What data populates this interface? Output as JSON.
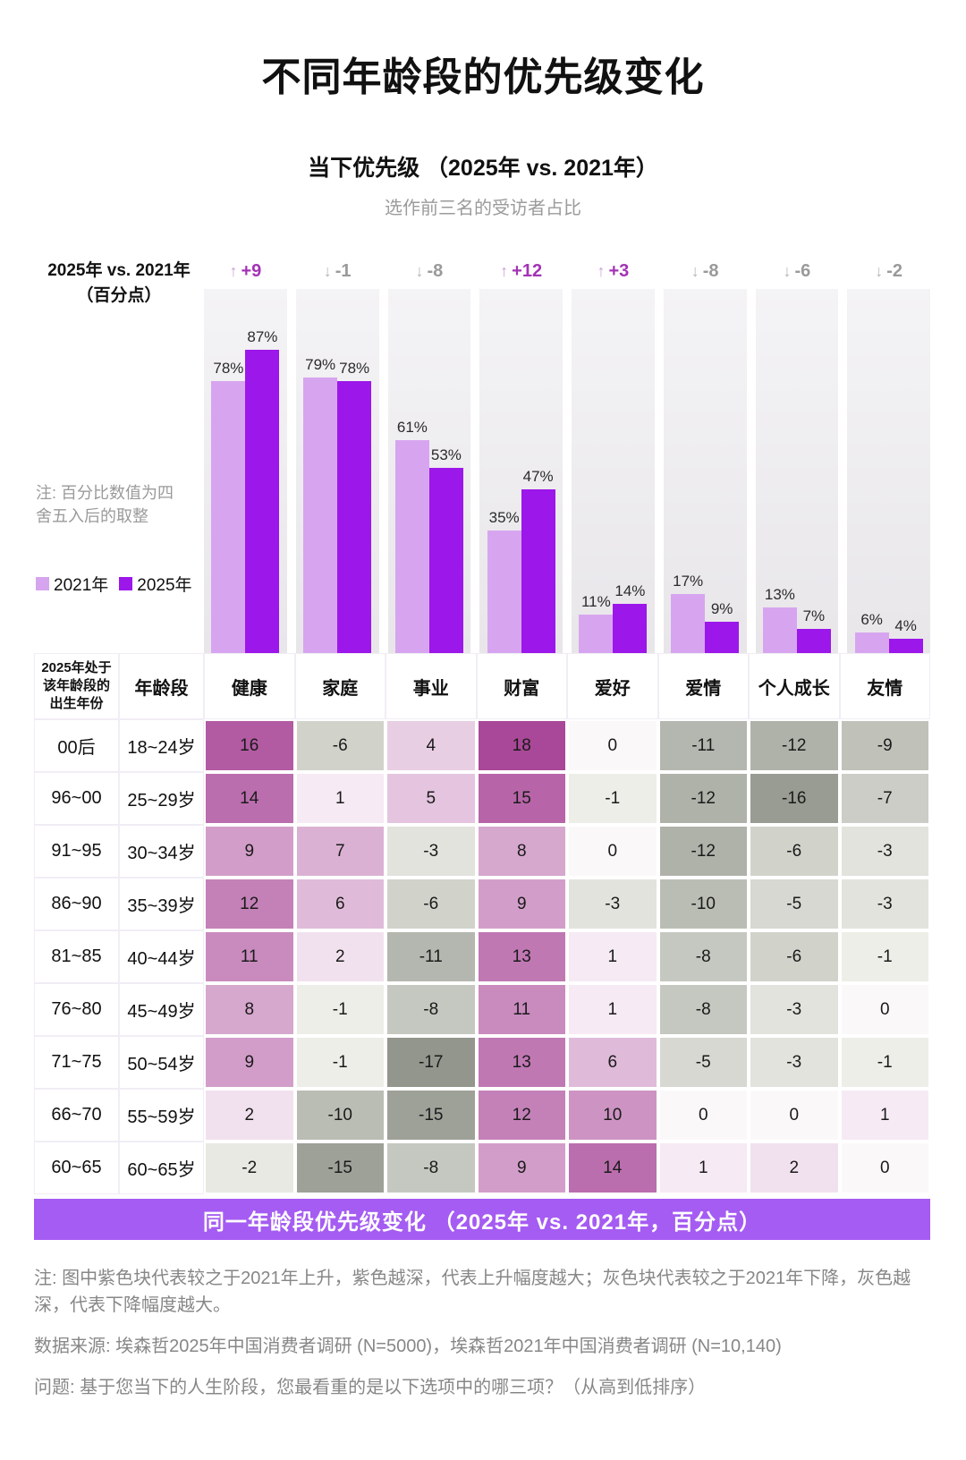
{
  "page": {
    "title": "不同年龄段的优先级变化",
    "subtitle": "当下优先级 （2025年 vs. 2021年）",
    "subtitle_note": "选作前三名的受访者占比",
    "axis_label_line1": "2025年 vs. 2021年",
    "axis_label_line2": "（百分点）",
    "rounding_note": "注: 百分比数值为四舍五入后的取整",
    "banner": "同一年龄段优先级变化 （2025年 vs. 2021年，百分点）",
    "footnote_colors": "注: 图中紫色块代表较之于2021年上升，紫色越深，代表上升幅度越大；灰色块代表较之于2021年下降，灰色越深，代表下降幅度越大。",
    "footnote_source": "数据来源: 埃森哲2025年中国消费者调研 (N=5000)，埃森哲2021年中国消费者调研 (N=10,140)",
    "footnote_question": "问题: 基于您当下的人生阶段，您最看重的是以下选项中的哪三项？（从高到低排序）",
    "colors": {
      "bar_2021": "#d7a5ef",
      "bar_2025": "#9c17ea",
      "delta_up_text": "#a333b5",
      "delta_down_text": "#9a9a9a",
      "banner_bg": "#a55cf2",
      "heat_positive_max": "#a94898",
      "heat_negative_max": "#92968c",
      "column_bg": "#eceaed"
    }
  },
  "chart_data": [
    {
      "type": "bar",
      "title": "当下优先级 （2025年 vs. 2021年）",
      "subtitle": "选作前三名的受访者占比",
      "categories": [
        "健康",
        "家庭",
        "事业",
        "财富",
        "爱好",
        "爱情",
        "个人成长",
        "友情"
      ],
      "series": [
        {
          "name": "2021年",
          "color": "#d7a5ef",
          "values": [
            78,
            79,
            61,
            35,
            11,
            17,
            13,
            6
          ]
        },
        {
          "name": "2025年",
          "color": "#9c17ea",
          "values": [
            87,
            78,
            53,
            47,
            14,
            9,
            7,
            4
          ]
        }
      ],
      "deltas": [
        {
          "label": "+9",
          "direction": "up"
        },
        {
          "label": "-1",
          "direction": "down"
        },
        {
          "label": "-8",
          "direction": "down"
        },
        {
          "label": "+12",
          "direction": "up"
        },
        {
          "label": "+3",
          "direction": "up"
        },
        {
          "label": "-8",
          "direction": "down"
        },
        {
          "label": "-6",
          "direction": "down"
        },
        {
          "label": "-2",
          "direction": "down"
        }
      ],
      "delta_axis_label": "2025年 vs. 2021年（百分点）",
      "value_suffix": "%",
      "ylim": [
        0,
        100
      ],
      "grid": false,
      "legend_position": "left-middle"
    },
    {
      "type": "heatmap",
      "row_header_1": "2025年处于该年龄段的出生年份",
      "row_header_2": "年龄段",
      "columns": [
        "健康",
        "家庭",
        "事业",
        "财富",
        "爱好",
        "爱情",
        "个人成长",
        "友情"
      ],
      "rows": [
        {
          "birth": "00后",
          "age": "18~24岁",
          "values": [
            16,
            -6,
            4,
            18,
            0,
            -11,
            -12,
            -9
          ]
        },
        {
          "birth": "96~00",
          "age": "25~29岁",
          "values": [
            14,
            1,
            5,
            15,
            -1,
            -12,
            -16,
            -7
          ]
        },
        {
          "birth": "91~95",
          "age": "30~34岁",
          "values": [
            9,
            7,
            -3,
            8,
            0,
            -12,
            -6,
            -3
          ]
        },
        {
          "birth": "86~90",
          "age": "35~39岁",
          "values": [
            12,
            6,
            -6,
            9,
            -3,
            -10,
            -5,
            -3
          ]
        },
        {
          "birth": "81~85",
          "age": "40~44岁",
          "values": [
            11,
            2,
            -11,
            13,
            1,
            -8,
            -6,
            -1
          ]
        },
        {
          "birth": "76~80",
          "age": "45~49岁",
          "values": [
            8,
            -1,
            -8,
            11,
            1,
            -8,
            -3,
            0
          ]
        },
        {
          "birth": "71~75",
          "age": "50~54岁",
          "values": [
            9,
            -1,
            -17,
            13,
            6,
            -5,
            -3,
            -1
          ]
        },
        {
          "birth": "66~70",
          "age": "55~59岁",
          "values": [
            2,
            -10,
            -15,
            12,
            10,
            0,
            0,
            1
          ]
        },
        {
          "birth": "60~65",
          "age": "60~65岁",
          "values": [
            -2,
            -15,
            -8,
            9,
            14,
            1,
            2,
            0
          ]
        }
      ],
      "color_scale": {
        "positive_max": 18,
        "negative_max": -17
      }
    }
  ]
}
